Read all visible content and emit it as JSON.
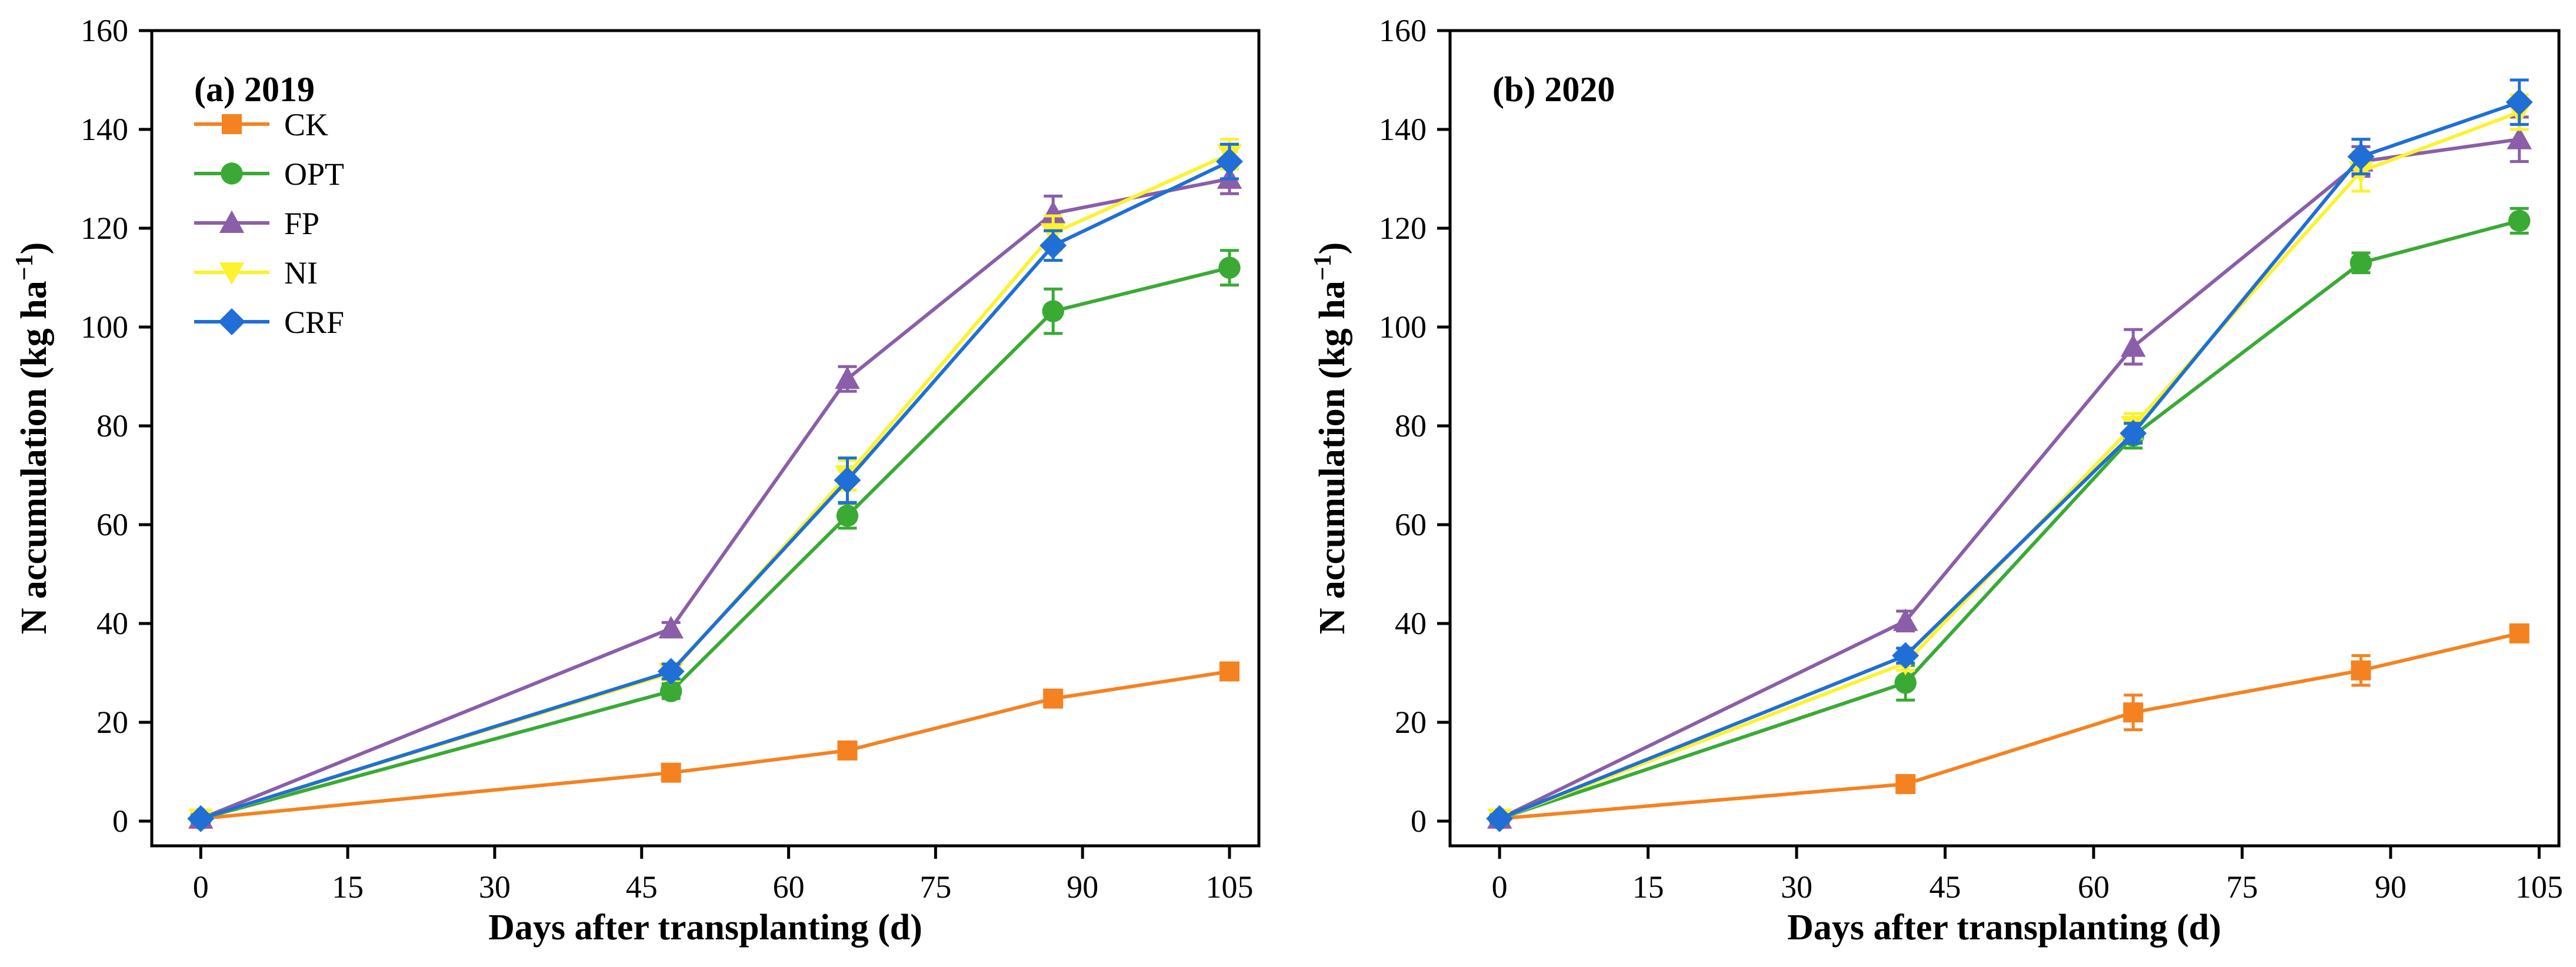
{
  "chart_data": [
    {
      "type": "line",
      "title": "(a) 2019",
      "xlabel": "Days after transplanting (d)",
      "ylabel_main": "N accumulation (kg ha",
      "ylabel_sup": "−1",
      "ylabel_close": ")",
      "xlim": [
        -5,
        108
      ],
      "ylim": [
        -5,
        160
      ],
      "xticks": [
        0,
        15,
        30,
        45,
        60,
        75,
        90,
        105
      ],
      "yticks": [
        0,
        20,
        40,
        60,
        80,
        100,
        120,
        140,
        160
      ],
      "legend": "top-left",
      "x": [
        0,
        48,
        66,
        87,
        105
      ],
      "series": [
        {
          "name": "CK",
          "color": "#f58220",
          "marker": "square",
          "values": [
            0.5,
            9.8,
            14.3,
            24.8,
            30.3
          ],
          "errors": [
            0.8,
            1.0,
            1.2,
            1.5,
            1.5
          ]
        },
        {
          "name": "OPT",
          "color": "#3aaa35",
          "marker": "circle",
          "values": [
            0.5,
            26.3,
            61.8,
            103.2,
            112.0
          ],
          "errors": [
            0.8,
            1.5,
            2.5,
            4.5,
            3.5
          ]
        },
        {
          "name": "FP",
          "color": "#8a5ea8",
          "marker": "triangle-up",
          "values": [
            0.5,
            39.0,
            89.5,
            123.0,
            130.0
          ],
          "errors": [
            0.8,
            1.2,
            2.5,
            3.5,
            3.0
          ]
        },
        {
          "name": "NI",
          "color": "#fcf230",
          "marker": "triangle-down",
          "values": [
            0.5,
            30.0,
            70.0,
            119.0,
            135.0
          ],
          "errors": [
            0.8,
            1.5,
            3.0,
            3.5,
            3.0
          ]
        },
        {
          "name": "CRF",
          "color": "#1f6fd6",
          "marker": "diamond",
          "values": [
            0.5,
            30.3,
            69.0,
            116.5,
            133.5
          ],
          "errors": [
            0.8,
            1.5,
            4.5,
            3.0,
            3.5
          ]
        }
      ]
    },
    {
      "type": "line",
      "title": "(b) 2020",
      "xlabel": "Days after transplanting (d)",
      "ylabel_main": "N accumulation (kg ha",
      "ylabel_sup": "−1",
      "ylabel_close": ")",
      "xlim": [
        -5,
        107
      ],
      "ylim": [
        -5,
        160
      ],
      "xticks": [
        0,
        15,
        30,
        45,
        60,
        75,
        90,
        105
      ],
      "yticks": [
        0,
        20,
        40,
        60,
        80,
        100,
        120,
        140,
        160
      ],
      "x": [
        0,
        41,
        64,
        87,
        103
      ],
      "series": [
        {
          "name": "CK",
          "color": "#f58220",
          "marker": "square",
          "values": [
            0.5,
            7.5,
            22.0,
            30.5,
            38.0
          ],
          "errors": [
            0.8,
            1.0,
            3.5,
            3.0,
            1.5
          ]
        },
        {
          "name": "OPT",
          "color": "#3aaa35",
          "marker": "circle",
          "values": [
            0.5,
            28.0,
            78.0,
            113.0,
            121.5
          ],
          "errors": [
            0.8,
            3.5,
            2.5,
            2.0,
            2.5
          ]
        },
        {
          "name": "FP",
          "color": "#8a5ea8",
          "marker": "triangle-up",
          "values": [
            0.5,
            40.5,
            96.0,
            133.5,
            138.0
          ],
          "errors": [
            0.8,
            2.0,
            3.5,
            3.0,
            4.5
          ]
        },
        {
          "name": "NI",
          "color": "#fcf230",
          "marker": "triangle-down",
          "values": [
            0.5,
            32.0,
            80.0,
            131.5,
            143.5
          ],
          "errors": [
            0.8,
            1.5,
            2.5,
            4.0,
            3.5
          ]
        },
        {
          "name": "CRF",
          "color": "#1f6fd6",
          "marker": "diamond",
          "values": [
            0.5,
            33.5,
            78.5,
            134.5,
            145.5
          ],
          "errors": [
            0.8,
            1.5,
            2.0,
            3.5,
            4.5
          ]
        }
      ]
    }
  ]
}
